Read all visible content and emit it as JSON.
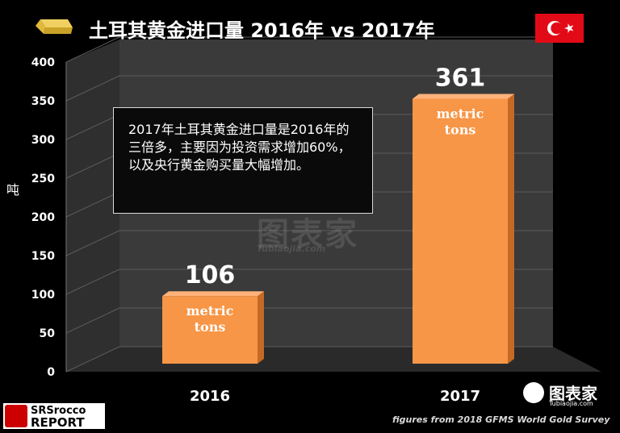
{
  "title": "土耳其黄金进口量 2016年 vs 2017年",
  "y_axis_label": "吨",
  "note": "2017年土耳其黄金进口量是2016年的三倍多，主要因为投资需求增加60%，以及央行黄金购买量大幅增加。",
  "source": "figures from 2018 GFMS World Gold Survey",
  "watermark": "图表家",
  "watermark_sub": "Tubiaojia.com",
  "logos": {
    "srs_top": "SRSrocco",
    "srs_bottom": "REPORT",
    "tb_text": "图表家",
    "tb_sub": "Tubiaojia.com"
  },
  "colors": {
    "bar": "#f79646",
    "bar_side": "#c46a24",
    "bar_top": "#ffb27a",
    "wall": "#3a3a3a",
    "floor": "#2a2a2a",
    "grid": "#5c5c5c"
  },
  "chart_data": {
    "type": "bar",
    "categories": [
      "2016",
      "2017"
    ],
    "values": [
      106,
      361
    ],
    "value_unit_label": "metric\ntons",
    "ylabel": "吨",
    "ylim": [
      0,
      400
    ],
    "yticks": [
      0,
      50,
      100,
      150,
      200,
      250,
      300,
      350,
      400
    ],
    "grid": true
  }
}
